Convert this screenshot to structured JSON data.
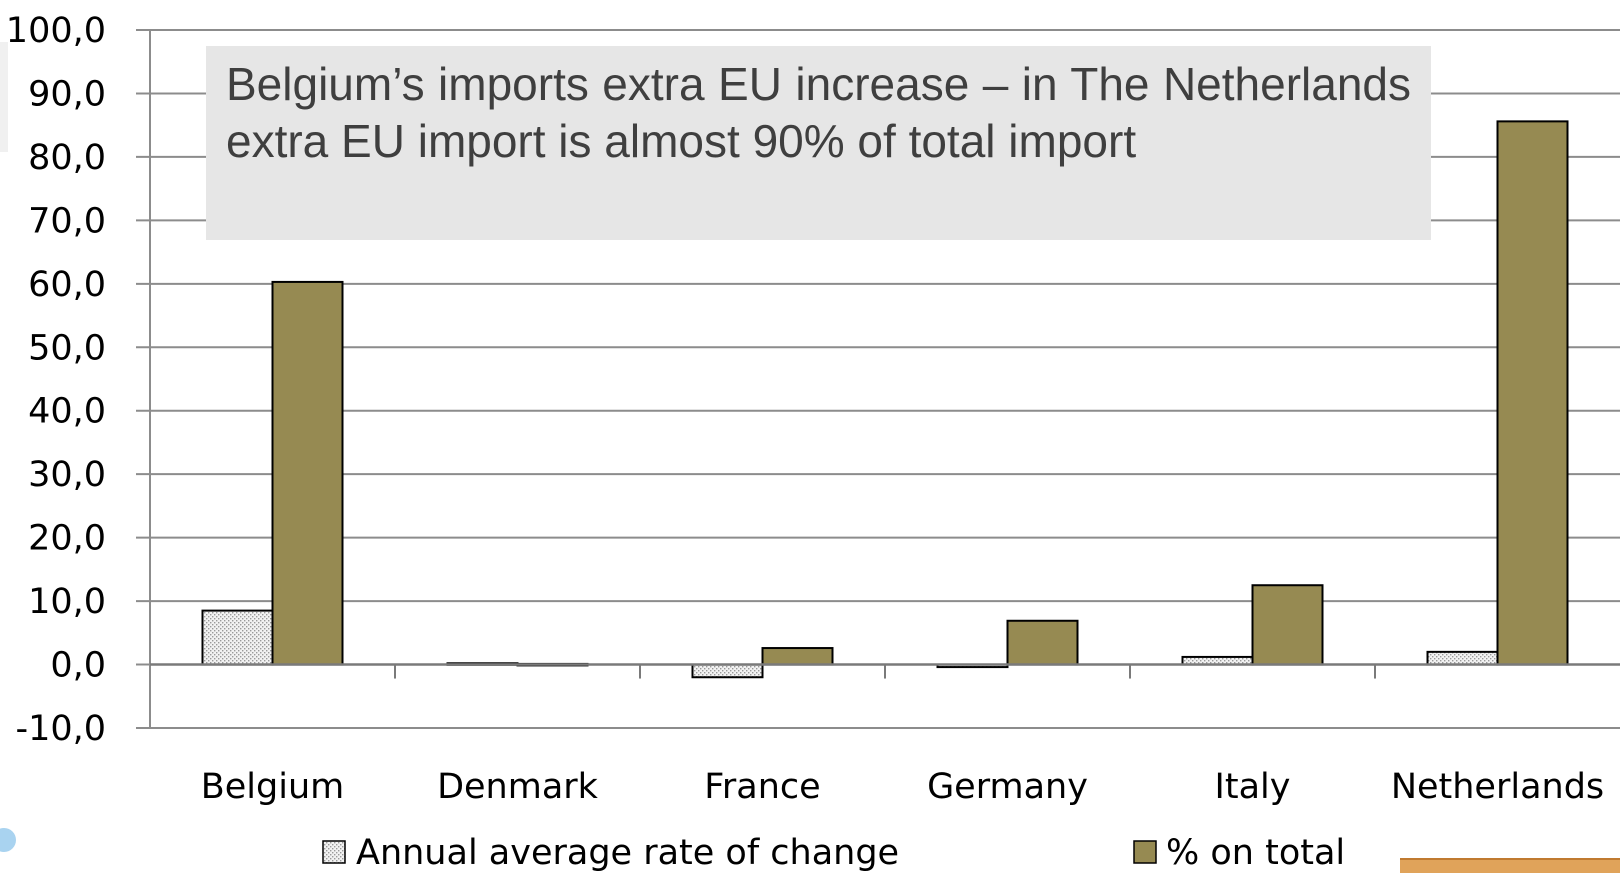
{
  "chart_data": {
    "type": "bar",
    "categories": [
      "Belgium",
      "Denmark",
      "France",
      "Germany",
      "Italy",
      "Netherlands"
    ],
    "series": [
      {
        "name": "Annual average rate of change",
        "values": [
          8.5,
          0.2,
          -2.0,
          -0.4,
          1.2,
          2.0
        ],
        "color": "#eeeeee",
        "pattern": "dotted"
      },
      {
        "name": "% on total",
        "values": [
          60.3,
          0.1,
          2.6,
          6.9,
          12.5,
          85.6
        ],
        "color": "#968a52"
      }
    ],
    "ylim": [
      -10,
      100
    ],
    "yticks": [
      "-10,0",
      "0,0",
      "10,0",
      "20,0",
      "30,0",
      "40,0",
      "50,0",
      "60,0",
      "70,0",
      "80,0",
      "90,0",
      "100,0"
    ],
    "ytick_values": [
      -10,
      0,
      10,
      20,
      30,
      40,
      50,
      60,
      70,
      80,
      90,
      100
    ],
    "grid": true,
    "legend_position": "bottom",
    "annotation": "Belgium’s imports extra EU increase – in The Netherlands extra EU import is almost 90% of total import"
  }
}
